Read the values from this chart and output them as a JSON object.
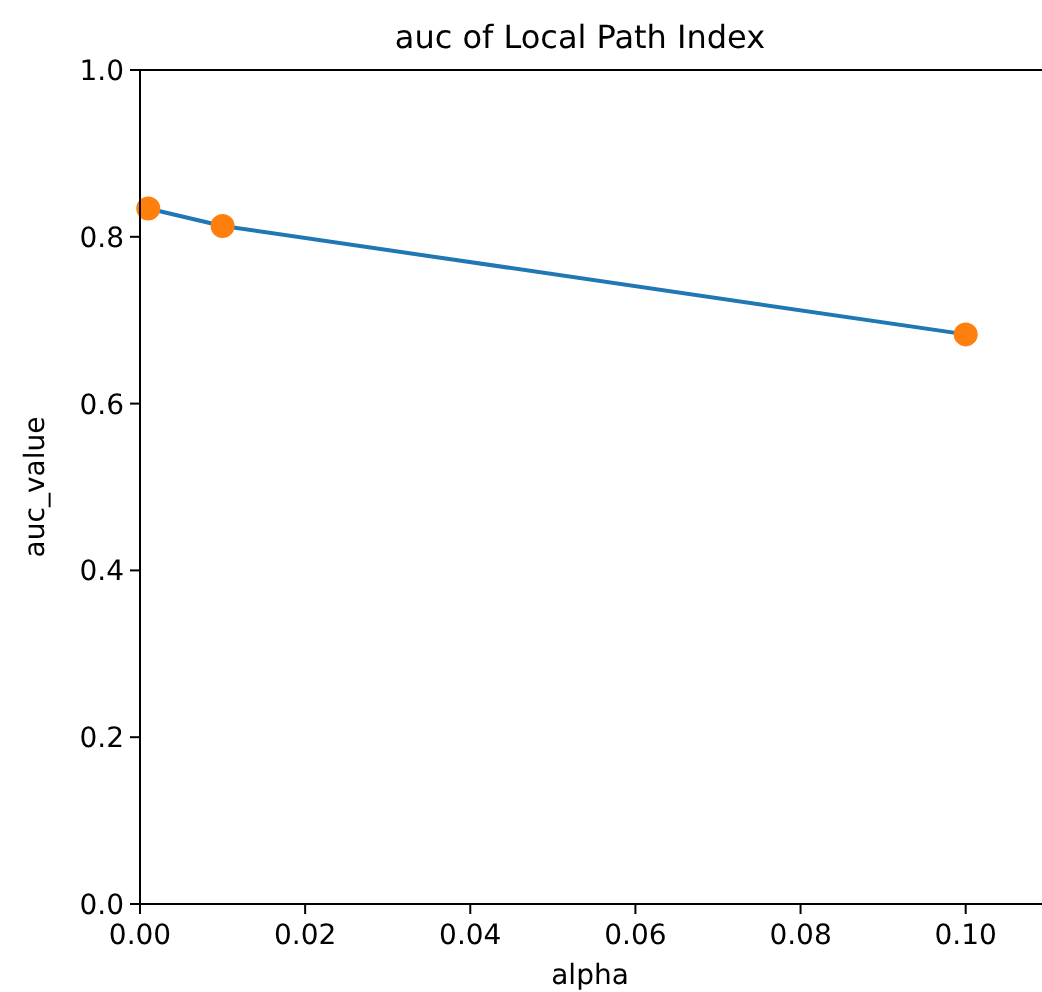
{
  "chart_data": {
    "type": "line",
    "title": "auc of Local Path Index",
    "xlabel": "alpha",
    "ylabel": "auc_value",
    "x": [
      0.001,
      0.01,
      0.1
    ],
    "series": [
      {
        "color": "#1f77b4",
        "values": [
          0.834,
          0.813,
          0.683
        ]
      },
      {
        "type": "scatter",
        "color": "#ff7f0e",
        "values": [
          0.834,
          0.813,
          0.683
        ],
        "marker": "circle"
      }
    ],
    "xlim": [
      0,
      0.109
    ],
    "ylim": [
      0,
      1
    ],
    "xticks": [
      {
        "value": 0,
        "label": "0.00"
      },
      {
        "value": 0.02,
        "label": "0.02"
      },
      {
        "value": 0.04,
        "label": "0.04"
      },
      {
        "value": 0.06,
        "label": "0.06"
      },
      {
        "value": 0.08,
        "label": "0.08"
      },
      {
        "value": 0.1,
        "label": "0.10"
      }
    ],
    "yticks": [
      {
        "value": 0,
        "label": "0.0"
      },
      {
        "value": 0.2,
        "label": "0.2"
      },
      {
        "value": 0.4,
        "label": "0.4"
      },
      {
        "value": 0.6,
        "label": "0.6"
      },
      {
        "value": 0.8,
        "label": "0.8"
      },
      {
        "value": 1,
        "label": "1.0"
      }
    ],
    "grid": false
  }
}
